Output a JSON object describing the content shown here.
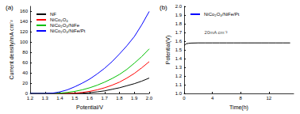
{
  "chart_data": [
    {
      "type": "line",
      "title": "(a)",
      "x_label": "Potential/V",
      "y_label": "Current density/mA cm⁻²",
      "x": [
        1.2,
        1.25,
        1.3,
        1.35,
        1.4,
        1.45,
        1.5,
        1.55,
        1.6,
        1.65,
        1.7,
        1.75,
        1.8,
        1.85,
        1.9,
        1.95,
        2.0
      ],
      "series": [
        {
          "name": "NF",
          "color": "#000000",
          "values": [
            0,
            0,
            0,
            0,
            0,
            0,
            0,
            0.5,
            1.5,
            3,
            5,
            8,
            11,
            15,
            19,
            24,
            30
          ]
        },
        {
          "name": "NiCo₂O₄",
          "color": "#ff0000",
          "values": [
            0,
            0,
            0,
            0,
            0,
            0,
            0.5,
            2,
            4,
            7,
            11,
            16,
            22,
            30,
            39,
            50,
            62
          ]
        },
        {
          "name": "NiCo₂O₄/NiFe",
          "color": "#00c000",
          "values": [
            0,
            0,
            0,
            0,
            0.5,
            2,
            4,
            7,
            11,
            16,
            22,
            29,
            37,
            47,
            59,
            72,
            87
          ]
        },
        {
          "name": "NiCo₂O₄/NiFe/Pt",
          "color": "#0000ff",
          "values": [
            0,
            0,
            0,
            0.5,
            3,
            7,
            13,
            20,
            28,
            38,
            49,
            62,
            77,
            93,
            111,
            134,
            160
          ]
        }
      ],
      "xlim": [
        1.2,
        2.0
      ],
      "xticks": [
        1.2,
        1.3,
        1.4,
        1.5,
        1.6,
        1.7,
        1.8,
        1.9,
        {
          "value": 2.0,
          "label": "2.0"
        }
      ],
      "ylim": [
        0,
        170
      ],
      "yticks": [
        0,
        20,
        40,
        60,
        80,
        100,
        120,
        140,
        160
      ],
      "grid": false,
      "legend": "upper left"
    },
    {
      "type": "line",
      "title": "(b)",
      "x_label": "Time(h)",
      "y_label": "Potential(V)",
      "x": [
        0,
        0.3,
        0.6,
        1,
        2,
        3,
        4,
        5,
        6,
        7,
        8,
        9,
        10,
        11,
        12,
        13,
        14,
        15
      ],
      "series": [
        {
          "name": "NiCo₂O₄/NiFe/Pt",
          "color": "#000000",
          "values": [
            1.55,
            1.57,
            1.575,
            1.578,
            1.58,
            1.58,
            1.58,
            1.58,
            1.58,
            1.58,
            1.58,
            1.58,
            1.58,
            1.58,
            1.58,
            1.58,
            1.58,
            1.58
          ]
        }
      ],
      "annotations": [
        {
          "text": "20mA cm⁻²",
          "x": 4.5,
          "y": 1.63
        }
      ],
      "xlim": [
        0,
        15.5
      ],
      "xticks": [
        0,
        4,
        8,
        12
      ],
      "ylim": [
        1.0,
        2.0
      ],
      "yticks": [
        {
          "value": 1.0,
          "label": "1.0"
        },
        1.1,
        1.2,
        1.3,
        1.4,
        1.5,
        1.6,
        1.7,
        1.8,
        1.9,
        {
          "value": 2.0,
          "label": "2.0"
        }
      ],
      "grid": false,
      "legend": "upper left"
    }
  ]
}
